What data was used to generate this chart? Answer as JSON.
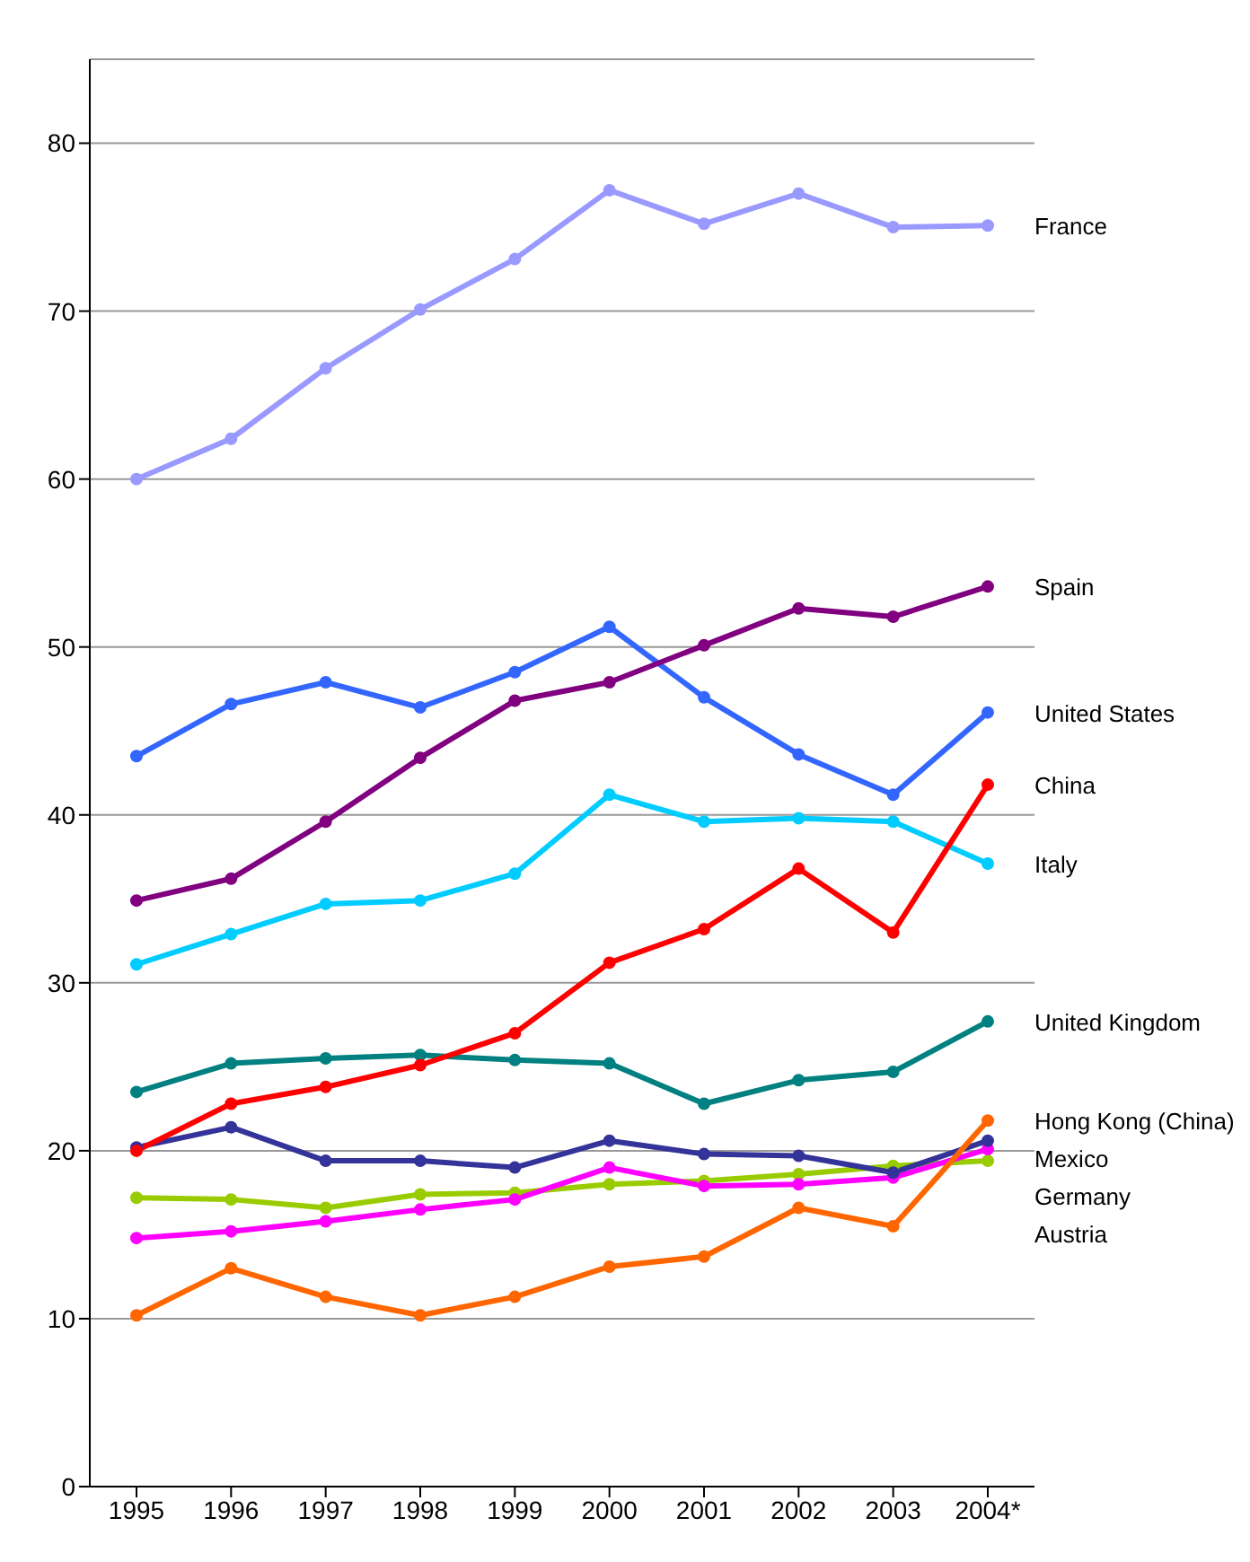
{
  "chart_data": {
    "type": "line",
    "categories": [
      "1995",
      "1996",
      "1997",
      "1998",
      "1999",
      "2000",
      "2001",
      "2002",
      "2003",
      "2004*"
    ],
    "series": [
      {
        "name": "France",
        "color": "#9999ff",
        "values": [
          60.0,
          62.4,
          66.6,
          70.1,
          73.1,
          77.2,
          75.2,
          77.0,
          75.0,
          75.1
        ]
      },
      {
        "name": "Spain",
        "color": "#800080",
        "values": [
          34.9,
          36.2,
          39.6,
          43.4,
          46.8,
          47.9,
          50.1,
          52.3,
          51.8,
          53.6
        ]
      },
      {
        "name": "United States",
        "color": "#3366ff",
        "values": [
          43.5,
          46.6,
          47.9,
          46.4,
          48.5,
          51.2,
          47.0,
          43.6,
          41.2,
          46.1
        ]
      },
      {
        "name": "China",
        "color": "#ff0000",
        "values": [
          20.0,
          22.8,
          23.8,
          25.1,
          27.0,
          31.2,
          33.2,
          36.8,
          33.0,
          41.8
        ]
      },
      {
        "name": "Italy",
        "color": "#00ccff",
        "values": [
          31.1,
          32.9,
          34.7,
          34.9,
          36.5,
          41.2,
          39.6,
          39.8,
          39.6,
          37.1
        ]
      },
      {
        "name": "United Kingdom",
        "color": "#008080",
        "values": [
          23.5,
          25.2,
          25.5,
          25.7,
          25.4,
          25.2,
          22.8,
          24.2,
          24.7,
          27.7
        ]
      },
      {
        "name": "Hong Kong (China)",
        "color": "#ff6600",
        "values": [
          10.2,
          13.0,
          11.3,
          10.2,
          11.3,
          13.1,
          13.7,
          16.6,
          15.5,
          21.8
        ]
      },
      {
        "name": "Mexico",
        "color": "#333399",
        "values": [
          20.2,
          21.4,
          19.4,
          19.4,
          19.0,
          20.6,
          19.8,
          19.7,
          18.7,
          20.6
        ]
      },
      {
        "name": "Germany",
        "color": "#ff00ff",
        "values": [
          14.8,
          15.2,
          15.8,
          16.5,
          17.1,
          19.0,
          17.9,
          18.0,
          18.4,
          20.1
        ]
      },
      {
        "name": "Austria",
        "color": "#99cc00",
        "values": [
          17.2,
          17.1,
          16.6,
          17.4,
          17.5,
          18.0,
          18.2,
          18.6,
          19.1,
          19.4
        ]
      }
    ],
    "ylim": [
      0,
      85
    ],
    "yticks": [
      0,
      10,
      20,
      30,
      40,
      50,
      60,
      70,
      80
    ],
    "grid": "y",
    "marker": "circle",
    "line_style": "solid"
  }
}
